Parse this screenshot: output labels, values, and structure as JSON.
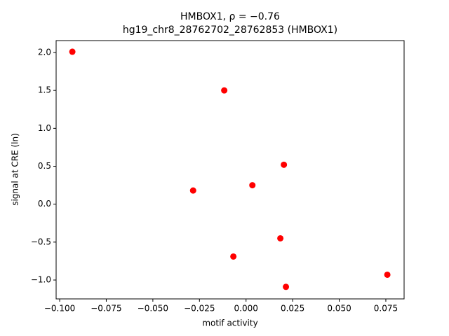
{
  "chart_data": {
    "type": "scatter",
    "title": "HMBOX1, ρ = −0.76",
    "subtitle": "hg19_chr8_28762702_28762853 (HMBOX1)",
    "x_label": "motif activity",
    "y_label": "signal at CRE (ln)",
    "color": "#ff0000",
    "x": [
      -0.0932,
      -0.0117,
      0.0203,
      -0.0284,
      0.0034,
      0.0184,
      -0.0068,
      0.0758,
      0.0214
    ],
    "values": [
      2.01,
      1.5,
      0.52,
      0.18,
      0.25,
      -0.45,
      -0.69,
      -0.93,
      -1.09
    ],
    "xlim": [
      -0.1019,
      0.0848
    ],
    "ylim": [
      -1.249,
      2.157
    ],
    "xticks": [
      {
        "value": -0.1,
        "label": "−0.100"
      },
      {
        "value": -0.075,
        "label": "−0.075"
      },
      {
        "value": -0.05,
        "label": "−0.050"
      },
      {
        "value": -0.025,
        "label": "−0.025"
      },
      {
        "value": 0,
        "label": "0.000"
      },
      {
        "value": 0.025,
        "label": "0.025"
      },
      {
        "value": 0.05,
        "label": "0.050"
      },
      {
        "value": 0.075,
        "label": "0.075"
      }
    ],
    "yticks": [
      {
        "value": -1,
        "label": "−1.0"
      },
      {
        "value": -0.5,
        "label": "−0.5"
      },
      {
        "value": 0,
        "label": "0.0"
      },
      0.5,
      {
        "value": 1,
        "label": "1.0"
      },
      1.5,
      {
        "value": 2,
        "label": "2.0"
      }
    ]
  }
}
